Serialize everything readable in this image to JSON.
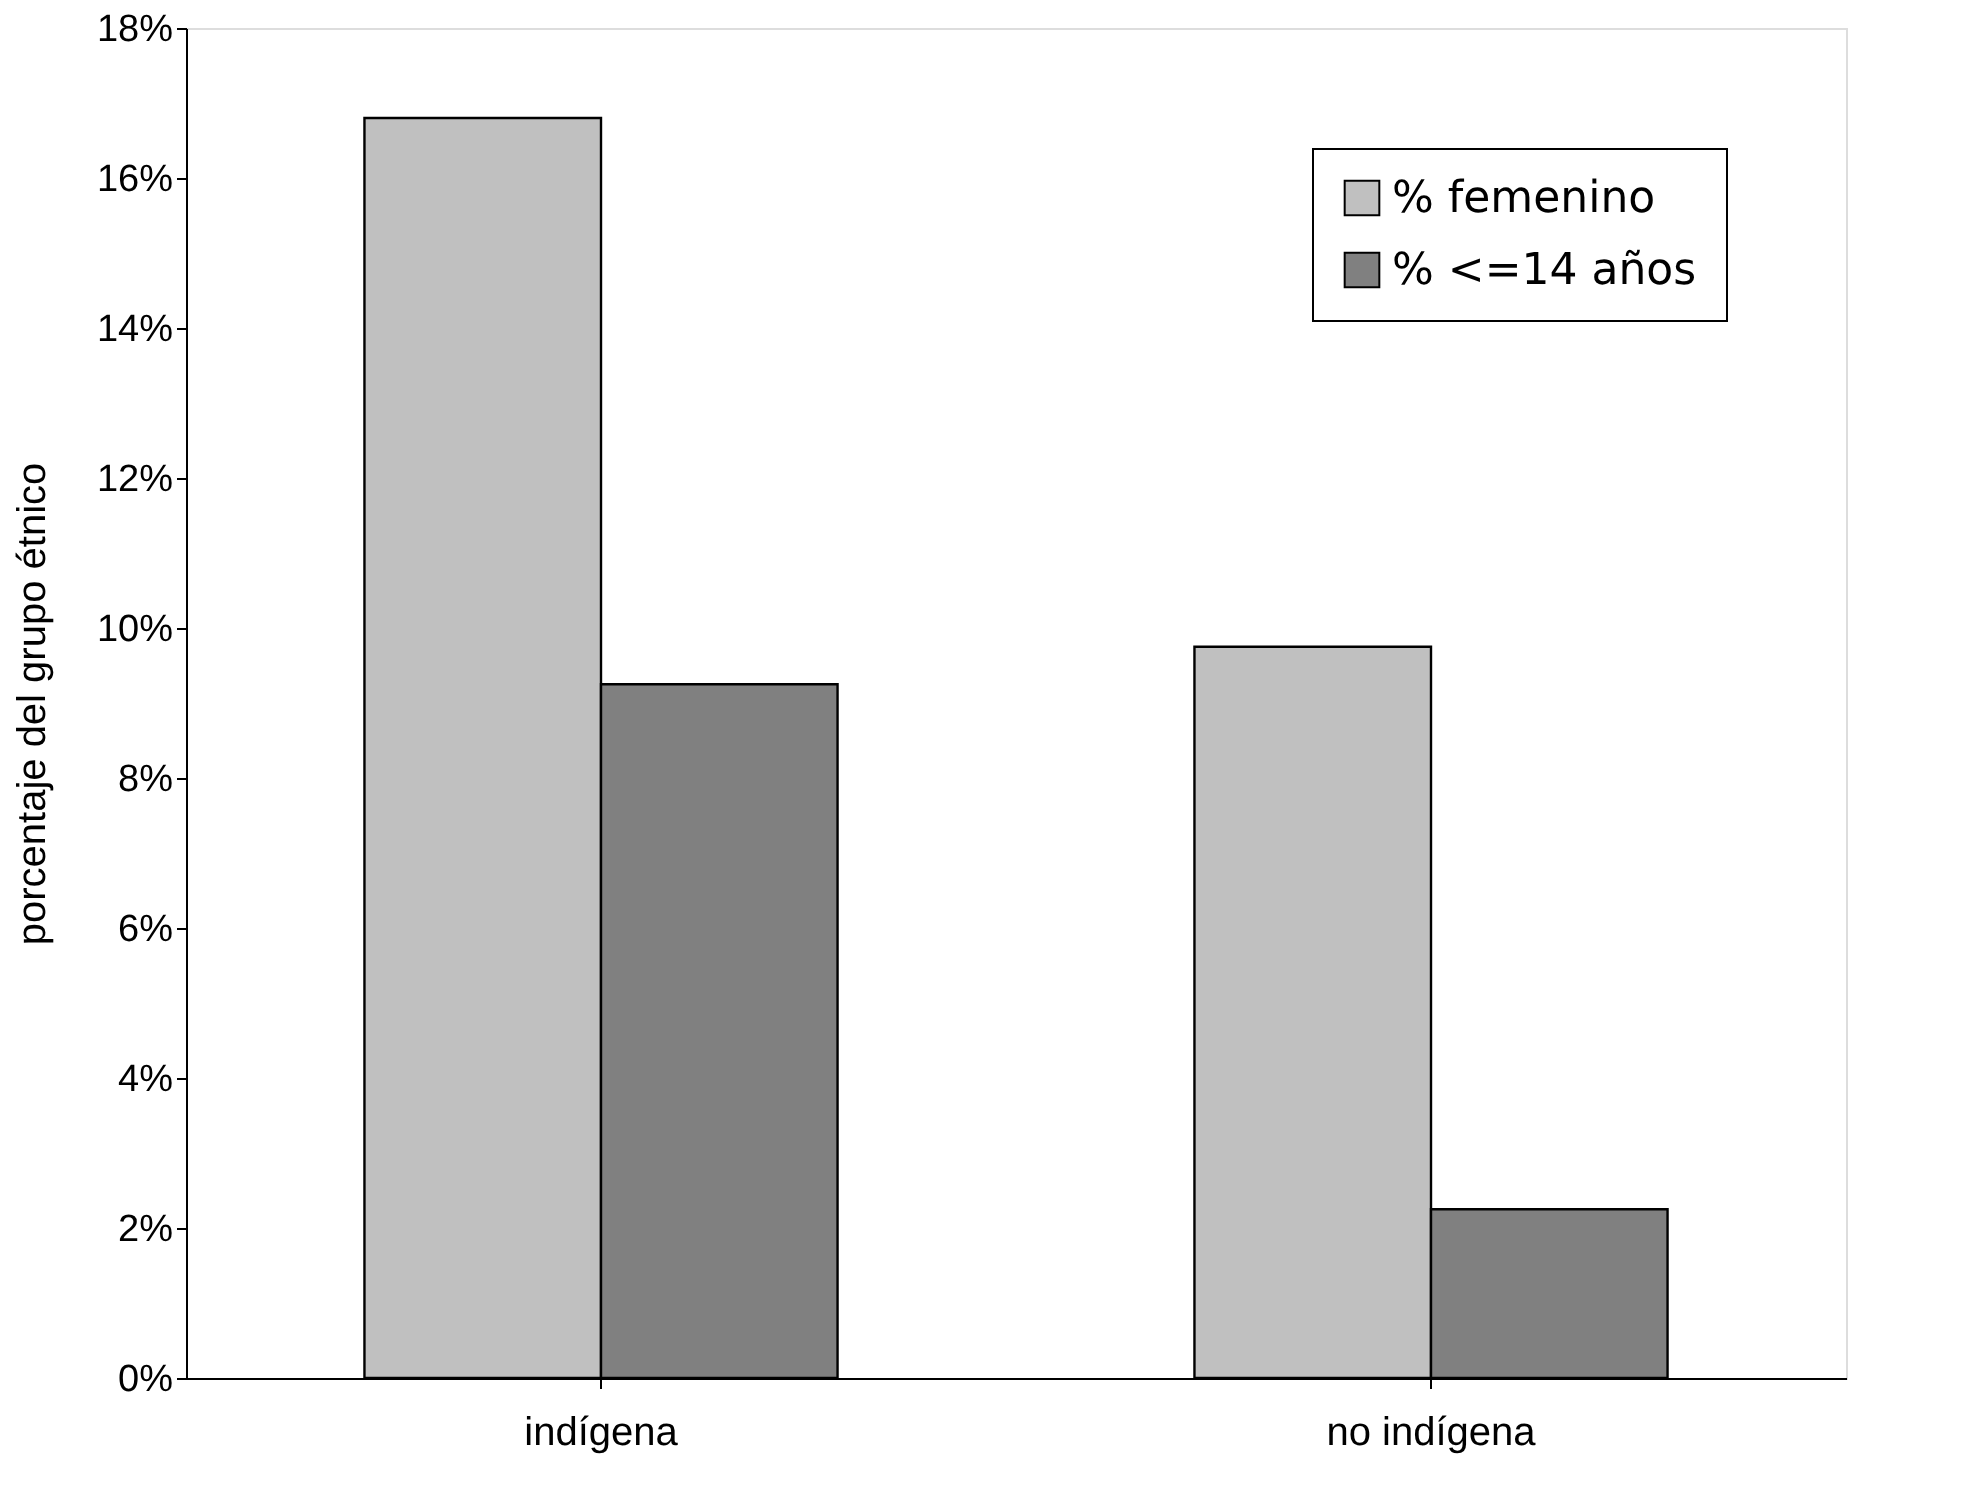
{
  "chart_data": {
    "type": "bar",
    "ylabel": "porcentaje del grupo étnico",
    "categories": [
      "indígena",
      "no indígena"
    ],
    "series": [
      {
        "name": "% femenino",
        "color": "#c0c0c0",
        "values": [
          16.8,
          9.75
        ]
      },
      {
        "name": "% <=14 años",
        "color": "#808080",
        "values": [
          9.25,
          2.25
        ]
      }
    ],
    "ylim": [
      0,
      18
    ],
    "yticks": [
      {
        "value": 0,
        "label": "0%"
      },
      {
        "value": 2,
        "label": "2%"
      },
      {
        "value": 4,
        "label": "4%"
      },
      {
        "value": 6,
        "label": "6%"
      },
      {
        "value": 8,
        "label": "8%"
      },
      {
        "value": 10,
        "label": "10%"
      },
      {
        "value": 12,
        "label": "12%"
      },
      {
        "value": 14,
        "label": "14%"
      },
      {
        "value": 16,
        "label": "16%"
      },
      {
        "value": 18,
        "label": "18%"
      }
    ],
    "grid": false,
    "legend": "top right"
  }
}
